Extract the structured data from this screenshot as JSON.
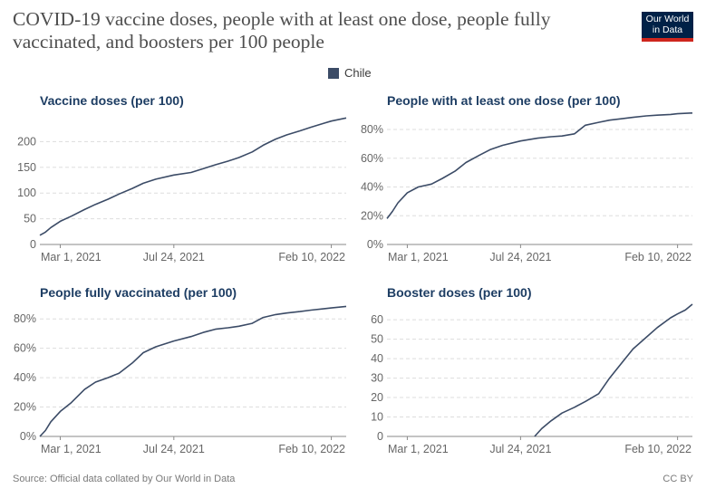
{
  "header": {
    "title": "COVID-19 vaccine doses, people with at least one dose, people fully vaccinated, and boosters per 100 people",
    "logo_line1": "Our World",
    "logo_line2": "in Data"
  },
  "legend": {
    "label": "Chile",
    "color": "#3b4b66"
  },
  "footer": {
    "source": "Source: Official data collated by Our World in Data",
    "license": "CC BY"
  },
  "chart_data": [
    {
      "type": "line",
      "title": "Vaccine doses (per 100)",
      "x_ticks": [
        "Mar 1, 2021",
        "Jul 24, 2021",
        "Feb 10, 2022"
      ],
      "y_ticks": [
        "0",
        "50",
        "100",
        "150",
        "200"
      ],
      "ylim": [
        0,
        250
      ],
      "grid": true,
      "series": [
        {
          "name": "Chile",
          "x": [
            "2021-02-03",
            "2021-02-10",
            "2021-02-17",
            "2021-03-01",
            "2021-03-15",
            "2021-04-01",
            "2021-04-15",
            "2021-05-01",
            "2021-05-15",
            "2021-06-01",
            "2021-06-15",
            "2021-07-01",
            "2021-07-24",
            "2021-08-15",
            "2021-09-01",
            "2021-09-15",
            "2021-10-01",
            "2021-10-15",
            "2021-11-01",
            "2021-11-15",
            "2021-12-01",
            "2021-12-15",
            "2022-01-01",
            "2022-01-15",
            "2022-02-01",
            "2022-02-10",
            "2022-03-01"
          ],
          "y": [
            18,
            24,
            33,
            45,
            55,
            68,
            78,
            88,
            98,
            109,
            119,
            127,
            135,
            140,
            148,
            155,
            162,
            169,
            180,
            193,
            205,
            213,
            221,
            228,
            236,
            240,
            246
          ]
        }
      ]
    },
    {
      "type": "line",
      "title": "People with at least one dose (per 100)",
      "x_ticks": [
        "Mar 1, 2021",
        "Jul 24, 2021",
        "Feb 10, 2022"
      ],
      "y_ticks": [
        "0%",
        "20%",
        "40%",
        "60%",
        "80%"
      ],
      "ylim": [
        0,
        92
      ],
      "grid": true,
      "series": [
        {
          "name": "Chile",
          "x": [
            "2021-02-03",
            "2021-02-10",
            "2021-02-17",
            "2021-03-01",
            "2021-03-15",
            "2021-04-01",
            "2021-04-15",
            "2021-05-01",
            "2021-05-15",
            "2021-06-01",
            "2021-06-15",
            "2021-07-01",
            "2021-07-24",
            "2021-08-15",
            "2021-09-01",
            "2021-09-15",
            "2021-10-01",
            "2021-10-15",
            "2021-11-01",
            "2021-11-15",
            "2021-12-01",
            "2021-12-15",
            "2022-01-01",
            "2022-01-15",
            "2022-02-01",
            "2022-02-10",
            "2022-03-01"
          ],
          "y": [
            18,
            23,
            29,
            36,
            40,
            42,
            46,
            51,
            57,
            62,
            66,
            69,
            72,
            74,
            75,
            75.5,
            77,
            83,
            85,
            86.5,
            87.5,
            88.5,
            89.5,
            90,
            90.5,
            91,
            91.5
          ]
        }
      ]
    },
    {
      "type": "line",
      "title": "People fully vaccinated (per 100)",
      "x_ticks": [
        "Mar 1, 2021",
        "Jul 24, 2021",
        "Feb 10, 2022"
      ],
      "y_ticks": [
        "0%",
        "20%",
        "40%",
        "60%",
        "80%"
      ],
      "ylim": [
        0,
        90
      ],
      "grid": true,
      "series": [
        {
          "name": "Chile",
          "x": [
            "2021-02-03",
            "2021-02-10",
            "2021-02-17",
            "2021-03-01",
            "2021-03-15",
            "2021-04-01",
            "2021-04-15",
            "2021-05-01",
            "2021-05-15",
            "2021-06-01",
            "2021-06-15",
            "2021-07-01",
            "2021-07-24",
            "2021-08-15",
            "2021-09-01",
            "2021-09-15",
            "2021-10-01",
            "2021-10-15",
            "2021-11-01",
            "2021-11-15",
            "2021-12-01",
            "2021-12-15",
            "2022-01-01",
            "2022-01-15",
            "2022-02-01",
            "2022-02-10",
            "2022-03-01"
          ],
          "y": [
            0,
            4,
            10,
            17,
            23,
            32,
            37,
            40,
            43,
            50,
            57,
            61,
            65,
            68,
            71,
            73,
            74,
            75,
            77,
            81,
            83,
            84,
            85,
            86,
            87,
            87.5,
            88.5
          ]
        }
      ]
    },
    {
      "type": "line",
      "title": "Booster doses (per 100)",
      "x_ticks": [
        "Mar 1, 2021",
        "Jul 24, 2021",
        "Feb 10, 2022"
      ],
      "y_ticks": [
        "0",
        "10",
        "20",
        "30",
        "40",
        "50",
        "60"
      ],
      "ylim": [
        0,
        68
      ],
      "grid": true,
      "series": [
        {
          "name": "Chile",
          "x": [
            "2021-08-11",
            "2021-08-20",
            "2021-09-01",
            "2021-09-15",
            "2021-10-01",
            "2021-10-15",
            "2021-11-01",
            "2021-11-15",
            "2021-12-01",
            "2021-12-15",
            "2022-01-01",
            "2022-01-15",
            "2022-02-01",
            "2022-02-10",
            "2022-02-20",
            "2022-03-01"
          ],
          "y": [
            0,
            4,
            8,
            12,
            15,
            18,
            22,
            30,
            38,
            45,
            51,
            56,
            61,
            63,
            65,
            68
          ]
        }
      ]
    }
  ]
}
